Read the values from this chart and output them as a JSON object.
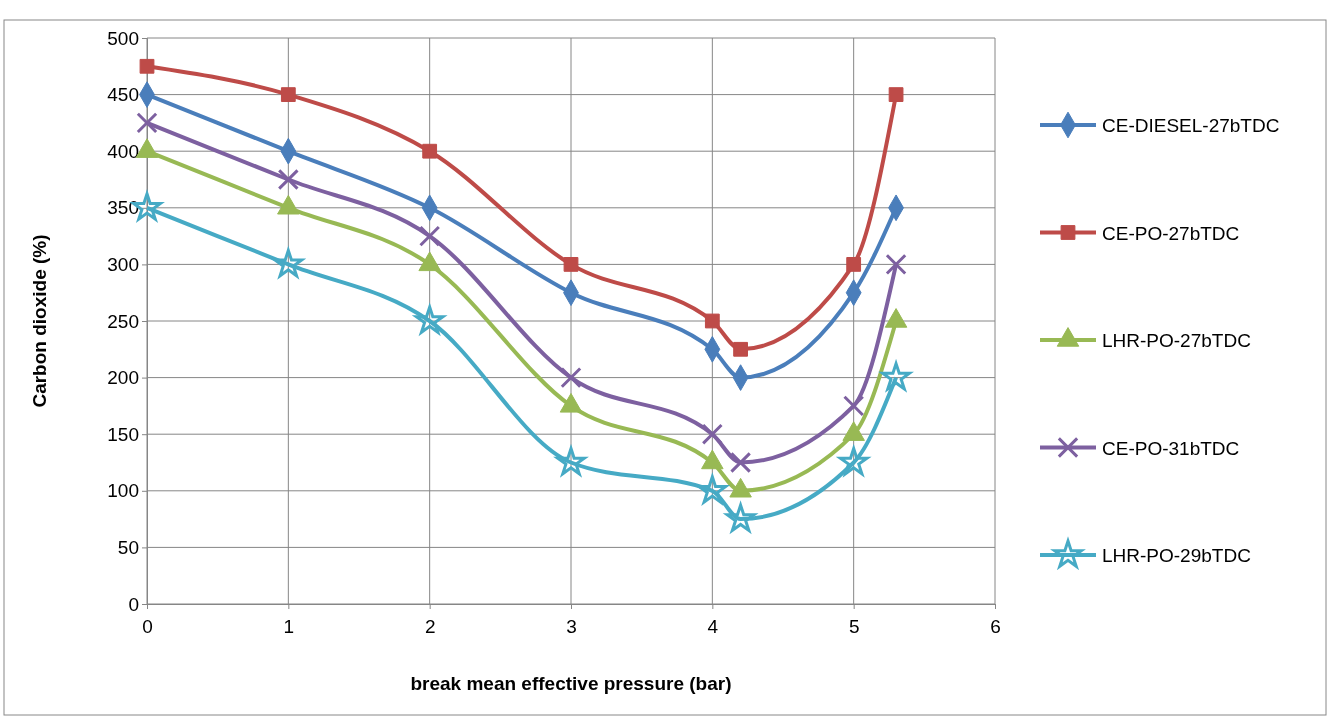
{
  "chart_data": {
    "type": "line",
    "xlabel": "break mean effective pressure (bar)",
    "ylabel": "Carbon dioxide  (%)",
    "x": [
      0,
      1,
      2,
      3,
      4,
      4.2,
      5,
      5.3
    ],
    "series": [
      {
        "name": "CE-DIESEL-27bTDC",
        "color": "#4a7ebb",
        "marker": "diamond",
        "values": [
          450,
          400,
          350,
          275,
          225,
          200,
          275,
          350
        ]
      },
      {
        "name": "CE-PO-27bTDC",
        "color": "#be4b48",
        "marker": "square",
        "values": [
          475,
          450,
          400,
          300,
          250,
          225,
          300,
          450
        ]
      },
      {
        "name": "LHR-PO-27bTDC",
        "color": "#98b954",
        "marker": "triangle",
        "values": [
          400,
          350,
          300,
          175,
          125,
          100,
          150,
          250
        ]
      },
      {
        "name": "CE-PO-31bTDC",
        "color": "#7d60a0",
        "marker": "cross",
        "values": [
          425,
          375,
          325,
          200,
          150,
          125,
          175,
          300
        ]
      },
      {
        "name": "LHR-PO-29bTDC",
        "color": "#46aac5",
        "marker": "star",
        "values": [
          350,
          300,
          250,
          125,
          100,
          75,
          125,
          200
        ]
      }
    ],
    "xlim": [
      0,
      6
    ],
    "xticks": [
      0,
      1,
      2,
      3,
      4,
      5,
      6
    ],
    "ylim": [
      0,
      500
    ],
    "yticks": [
      0,
      50,
      100,
      150,
      200,
      250,
      300,
      350,
      400,
      450,
      500
    ],
    "grid": true,
    "legend": "right",
    "line_style": "solid"
  }
}
